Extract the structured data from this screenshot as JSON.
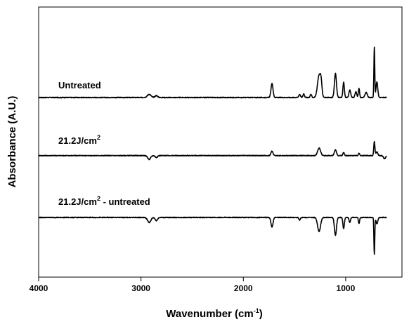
{
  "chart_data": {
    "type": "line",
    "title": "",
    "xlabel": {
      "text": "Wavenumber (cm",
      "sup": "-1",
      "suffix": ")"
    },
    "ylabel": "Absorbance (A.U.)",
    "xlim": [
      4000,
      450
    ],
    "x_reversed": true,
    "x_ticks": [
      {
        "value": 4000,
        "label": "4000"
      },
      {
        "value": 3000,
        "label": "3000"
      },
      {
        "value": 2000,
        "label": "2000"
      },
      {
        "value": 1000,
        "label": "1000"
      }
    ],
    "y_ticks_shown": false,
    "grid": false,
    "series": [
      {
        "label": {
          "text": "Untreated",
          "sup": "",
          "suffix": ""
        },
        "baseline": 0.0,
        "features": [
          {
            "x": 2920,
            "h": 0.05,
            "w": 25
          },
          {
            "x": 2850,
            "h": 0.03,
            "w": 18
          },
          {
            "x": 1720,
            "h": 0.22,
            "w": 14
          },
          {
            "x": 1450,
            "h": 0.05,
            "w": 12
          },
          {
            "x": 1410,
            "h": 0.06,
            "w": 10
          },
          {
            "x": 1340,
            "h": 0.05,
            "w": 10
          },
          {
            "x": 1260,
            "h": 0.35,
            "w": 22
          },
          {
            "x": 1240,
            "h": 0.18,
            "w": 12
          },
          {
            "x": 1100,
            "h": 0.38,
            "w": 14
          },
          {
            "x": 1020,
            "h": 0.24,
            "w": 10
          },
          {
            "x": 960,
            "h": 0.12,
            "w": 12
          },
          {
            "x": 900,
            "h": 0.09,
            "w": 12
          },
          {
            "x": 870,
            "h": 0.15,
            "w": 8
          },
          {
            "x": 800,
            "h": 0.08,
            "w": 15
          },
          {
            "x": 720,
            "h": 0.8,
            "w": 6
          },
          {
            "x": 695,
            "h": 0.25,
            "w": 12
          }
        ]
      },
      {
        "label": {
          "text": "21.2J/cm",
          "sup": "2",
          "suffix": ""
        },
        "baseline": -0.02,
        "features": [
          {
            "x": 2920,
            "h": -0.06,
            "w": 20
          },
          {
            "x": 2850,
            "h": -0.03,
            "w": 15
          },
          {
            "x": 1720,
            "h": 0.07,
            "w": 14
          },
          {
            "x": 1260,
            "h": 0.12,
            "w": 20
          },
          {
            "x": 1100,
            "h": 0.09,
            "w": 14
          },
          {
            "x": 1020,
            "h": 0.05,
            "w": 10
          },
          {
            "x": 870,
            "h": 0.04,
            "w": 8
          },
          {
            "x": 720,
            "h": 0.22,
            "w": 8
          },
          {
            "x": 695,
            "h": 0.06,
            "w": 12
          },
          {
            "x": 620,
            "h": -0.05,
            "w": 15
          }
        ]
      },
      {
        "label": {
          "text": "21.2J/cm",
          "sup": "2",
          "suffix": " - untreated"
        },
        "baseline": 0.0,
        "features": [
          {
            "x": 2920,
            "h": -0.08,
            "w": 22
          },
          {
            "x": 2850,
            "h": -0.05,
            "w": 16
          },
          {
            "x": 1720,
            "h": -0.15,
            "w": 14
          },
          {
            "x": 1450,
            "h": -0.04,
            "w": 10
          },
          {
            "x": 1260,
            "h": -0.22,
            "w": 20
          },
          {
            "x": 1100,
            "h": -0.28,
            "w": 14
          },
          {
            "x": 1020,
            "h": -0.18,
            "w": 10
          },
          {
            "x": 960,
            "h": -0.08,
            "w": 10
          },
          {
            "x": 870,
            "h": -0.1,
            "w": 8
          },
          {
            "x": 720,
            "h": -0.58,
            "w": 6
          },
          {
            "x": 695,
            "h": -0.1,
            "w": 12
          }
        ]
      }
    ]
  }
}
